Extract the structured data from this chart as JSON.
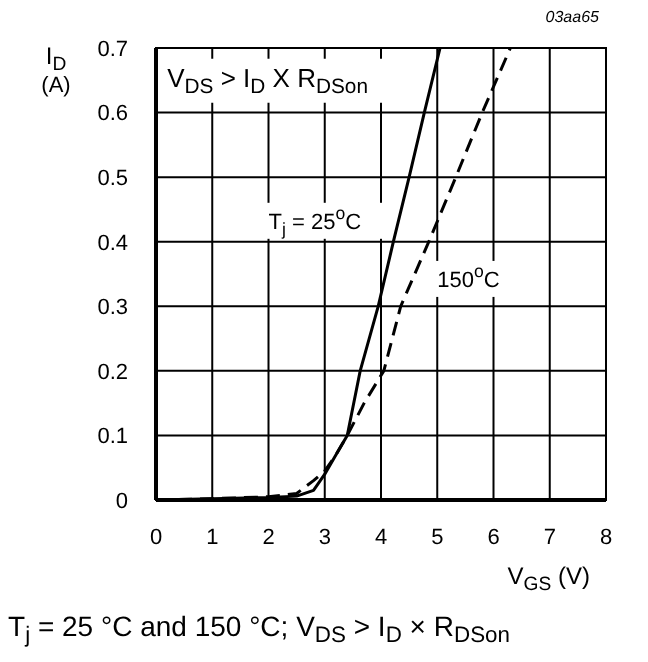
{
  "chart_data": {
    "type": "line",
    "xlabel": "V$_{GS}$ (V)",
    "ylabel": "I$_{D}$ (A)",
    "xlim": [
      0,
      8
    ],
    "xticks": [
      0,
      1,
      2,
      3,
      4,
      5,
      6,
      7,
      8
    ],
    "ylim": [
      0,
      0.7
    ],
    "yticks": [
      0,
      0.1,
      0.2,
      0.3,
      0.4,
      0.5,
      0.6,
      0.7
    ],
    "grid": true,
    "marker": "none",
    "series": [
      {
        "name": "T$_{j}$ = 25$^{o}$C",
        "color": "#000000",
        "line_style": "solid",
        "x": [
          0,
          1,
          2,
          2.5,
          2.8,
          3.0,
          3.2,
          3.4,
          3.63,
          3.95,
          4.22,
          4.5,
          4.77,
          5.05
        ],
        "values": [
          0,
          0.002,
          0.004,
          0.006,
          0.015,
          0.04,
          0.07,
          0.1,
          0.2,
          0.3,
          0.4,
          0.5,
          0.6,
          0.7
        ]
      },
      {
        "name": "150$^{o}$C",
        "color": "#000000",
        "line_style": "dashed",
        "x": [
          0,
          1,
          2,
          2.5,
          2.8,
          3.0,
          3.2,
          3.4,
          3.7,
          4.05,
          4.35,
          4.85,
          5.33,
          5.8,
          6.3
        ],
        "values": [
          0,
          0.002,
          0.005,
          0.01,
          0.03,
          0.045,
          0.07,
          0.1,
          0.15,
          0.2,
          0.3,
          0.4,
          0.5,
          0.6,
          0.7
        ]
      }
    ],
    "annotations": [
      "V$_{DS}$ > I$_{D}$ X R$_{DSon}$",
      "03aa65",
      "T$_{j}$ = 25 °C and 150 °C; V$_{DS}$ > I$_{D}$ × R$_{DSon}$"
    ]
  }
}
